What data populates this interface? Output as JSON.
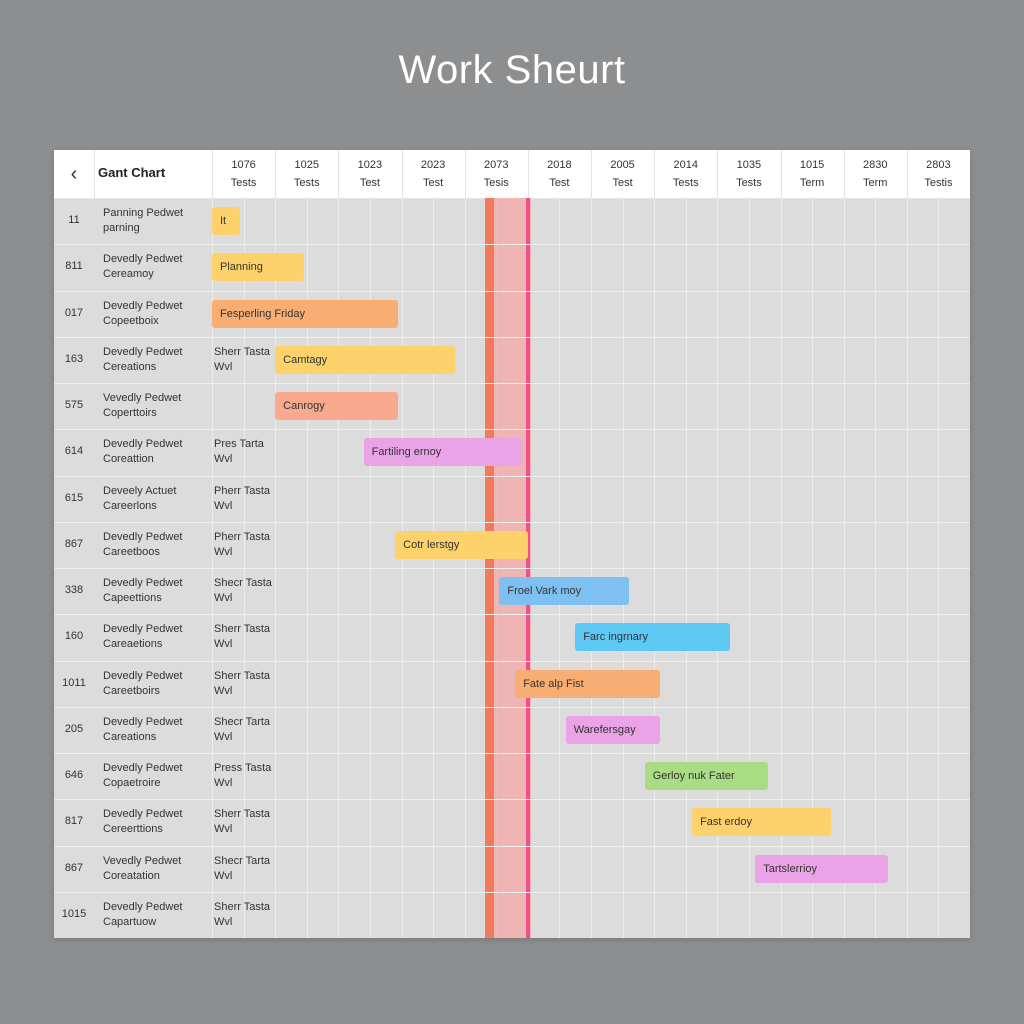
{
  "page_title": "Work Sheurt",
  "header": {
    "back_icon": "chevron-left-icon",
    "title": "Gant Chart"
  },
  "columns": [
    {
      "year": "1076",
      "sub": "Tests"
    },
    {
      "year": "1025",
      "sub": "Tests"
    },
    {
      "year": "1023",
      "sub": "Test"
    },
    {
      "year": "2023",
      "sub": "Test"
    },
    {
      "year": "2073",
      "sub": "Tesis"
    },
    {
      "year": "2018",
      "sub": "Test"
    },
    {
      "year": "2005",
      "sub": "Test"
    },
    {
      "year": "2014",
      "sub": "Tests"
    },
    {
      "year": "1035",
      "sub": "Tests"
    },
    {
      "year": "1015",
      "sub": "Term"
    },
    {
      "year": "2830",
      "sub": "Term"
    },
    {
      "year": "2803",
      "sub": "Testis"
    }
  ],
  "chart_data": {
    "type": "gantt",
    "title": "Work Sheurt",
    "timeline_units": "columns",
    "timeline_range": [
      0,
      11
    ],
    "today_marker": {
      "start": 4.35,
      "end": 5.05,
      "line_a": 4.4,
      "line_b": 5.0
    },
    "colors": {
      "today_band": "#f7a3a3",
      "today_line_a": "#f07a5a",
      "today_line_b": "#f0508a"
    },
    "rows": [
      {
        "id": "11",
        "name": [
          "Panning Pedwet",
          "parning"
        ],
        "sub": [
          "",
          ""
        ],
        "task": {
          "label": "It",
          "start": 0.0,
          "end": 0.45,
          "color": "#fdd26a"
        }
      },
      {
        "id": "811",
        "name": [
          "Devedly Pedwet",
          "Cereamoy"
        ],
        "sub": [
          "",
          ""
        ],
        "task": {
          "label": "Planning",
          "start": 0.0,
          "end": 1.45,
          "color": "#fdd26a"
        }
      },
      {
        "id": "017",
        "name": [
          "Devedly Pedwet",
          "Copeetboix"
        ],
        "sub": [
          "",
          ""
        ],
        "task": {
          "label": "Fesperling Friday",
          "start": 0.0,
          "end": 2.95,
          "color": "#f8ad72"
        }
      },
      {
        "id": "163",
        "name": [
          "Devedly Pedwet",
          "Cereations"
        ],
        "sub": [
          "Sherr Tasta",
          "Wvl"
        ],
        "task": {
          "label": "Camtagy",
          "start": 1.0,
          "end": 3.85,
          "color": "#fdd26a"
        }
      },
      {
        "id": "575",
        "name": [
          "Vevedly Pedwet",
          "Coperttoirs"
        ],
        "sub": [
          "",
          ""
        ],
        "task": {
          "label": "Canrogy",
          "start": 1.0,
          "end": 2.95,
          "color": "#f8a98e"
        }
      },
      {
        "id": "614",
        "name": [
          "Devedly Pedwet",
          "Coreattion"
        ],
        "sub": [
          "Pres Tarta",
          "Wvl"
        ],
        "task": {
          "label": "Fartiling ernoy",
          "start": 2.4,
          "end": 4.9,
          "color": "#e9a3e6"
        }
      },
      {
        "id": "615",
        "name": [
          "Deveely Actuet",
          "Careerlons"
        ],
        "sub": [
          "Pherr Tasta",
          "Wvl"
        ],
        "task": null
      },
      {
        "id": "867",
        "name": [
          "Devedly Pedwet",
          "Careetboos"
        ],
        "sub": [
          "Pherr Tasta",
          "Wvl"
        ],
        "task": {
          "label": "Cotr lerstgy",
          "start": 2.9,
          "end": 5.0,
          "color": "#fdd26a"
        }
      },
      {
        "id": "338",
        "name": [
          "Devedly Pedwet",
          "Capeettions"
        ],
        "sub": [
          "Shecr Tasta",
          "Wvl"
        ],
        "task": {
          "label": "Froel Vark moy",
          "start": 4.55,
          "end": 6.6,
          "color": "#7ec0f2"
        }
      },
      {
        "id": "160",
        "name": [
          "Devedly Pedwet",
          "Careaetions"
        ],
        "sub": [
          "Sherr Tasta",
          "Wvl"
        ],
        "task": {
          "label": "Farc ingrnary",
          "start": 5.75,
          "end": 8.2,
          "color": "#5dc8f4"
        }
      },
      {
        "id": "1011",
        "name": [
          "Devedly Pedwet",
          "Careetboirs"
        ],
        "sub": [
          "Sherr Tasta",
          "Wvl"
        ],
        "task": {
          "label": "Fate alp Fist",
          "start": 4.8,
          "end": 7.1,
          "color": "#f8ad72"
        }
      },
      {
        "id": "205",
        "name": [
          "Devedly Pedwet",
          "Careations"
        ],
        "sub": [
          "Shecr Tarta",
          "Wvl"
        ],
        "task": {
          "label": "Warefersgay",
          "start": 5.6,
          "end": 7.1,
          "color": "#e9a3e6"
        }
      },
      {
        "id": "646",
        "name": [
          "Devedly Pedwet",
          "Copaetroire"
        ],
        "sub": [
          "Press Tasta",
          "Wvl"
        ],
        "task": {
          "label": "Gerloy nuk Fater",
          "start": 6.85,
          "end": 8.8,
          "color": "#a9dc85"
        }
      },
      {
        "id": "817",
        "name": [
          "Devedly Pedwet",
          "Cereerttions"
        ],
        "sub": [
          "Sherr Tasta",
          "Wvl"
        ],
        "task": {
          "label": "Fast erdoy",
          "start": 7.6,
          "end": 9.8,
          "color": "#fdd26a"
        }
      },
      {
        "id": "867",
        "name": [
          "Vevedly Pedwet",
          "Coreatation"
        ],
        "sub": [
          "Shecr Tarta",
          "Wvl"
        ],
        "task": {
          "label": "Tartslerrioy",
          "start": 8.6,
          "end": 10.7,
          "color": "#e9a3e6"
        }
      },
      {
        "id": "1015",
        "name": [
          "Devedly Pedwet",
          "Capartuow"
        ],
        "sub": [
          "Sherr Tasta",
          "Wvl"
        ],
        "task": null
      }
    ]
  }
}
